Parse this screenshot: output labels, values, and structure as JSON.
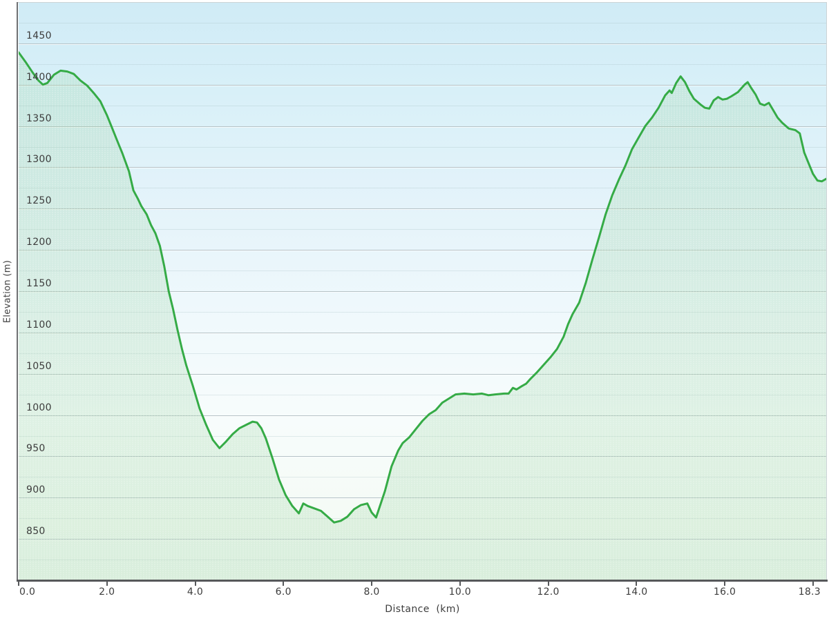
{
  "chart_data": {
    "type": "area",
    "title": "",
    "xlabel": "Distance  (km)",
    "ylabel": "Elevation (m)",
    "xlim": [
      0,
      18.3
    ],
    "ylim": [
      800,
      1500
    ],
    "grid": "on",
    "legend": "none",
    "yticks": [
      850,
      900,
      950,
      1000,
      1050,
      1100,
      1150,
      1200,
      1250,
      1300,
      1350,
      1400,
      1450
    ],
    "xticks": [
      0,
      2,
      4,
      6,
      8,
      10,
      12,
      14,
      16,
      18
    ],
    "xtick_labels": [
      {
        "text": "0.0",
        "km": 0.0,
        "anchor": "start"
      },
      {
        "text": "2.0",
        "km": 2.0,
        "anchor": "middle"
      },
      {
        "text": "4.0",
        "km": 4.0,
        "anchor": "middle"
      },
      {
        "text": "6.0",
        "km": 6.0,
        "anchor": "middle"
      },
      {
        "text": "8.0",
        "km": 8.0,
        "anchor": "middle"
      },
      {
        "text": "10.0",
        "km": 10.0,
        "anchor": "middle"
      },
      {
        "text": "12.0",
        "km": 12.0,
        "anchor": "middle"
      },
      {
        "text": "14.0",
        "km": 14.0,
        "anchor": "middle"
      },
      {
        "text": "16.0",
        "km": 16.0,
        "anchor": "middle"
      },
      {
        "text": "18.3",
        "km": 18.3,
        "anchor": "end"
      }
    ],
    "points": [
      [
        0.0,
        1439
      ],
      [
        0.15,
        1428
      ],
      [
        0.3,
        1416
      ],
      [
        0.45,
        1405
      ],
      [
        0.55,
        1400
      ],
      [
        0.65,
        1402
      ],
      [
        0.8,
        1412
      ],
      [
        0.95,
        1417
      ],
      [
        1.1,
        1416
      ],
      [
        1.25,
        1413
      ],
      [
        1.4,
        1405
      ],
      [
        1.55,
        1399
      ],
      [
        1.7,
        1390
      ],
      [
        1.85,
        1380
      ],
      [
        2.0,
        1363
      ],
      [
        2.1,
        1350
      ],
      [
        2.25,
        1330
      ],
      [
        2.35,
        1317
      ],
      [
        2.5,
        1295
      ],
      [
        2.6,
        1272
      ],
      [
        2.7,
        1262
      ],
      [
        2.78,
        1253
      ],
      [
        2.9,
        1243
      ],
      [
        3.0,
        1230
      ],
      [
        3.1,
        1220
      ],
      [
        3.2,
        1205
      ],
      [
        3.3,
        1180
      ],
      [
        3.4,
        1150
      ],
      [
        3.5,
        1128
      ],
      [
        3.6,
        1103
      ],
      [
        3.7,
        1080
      ],
      [
        3.8,
        1060
      ],
      [
        3.95,
        1035
      ],
      [
        4.1,
        1008
      ],
      [
        4.25,
        988
      ],
      [
        4.4,
        970
      ],
      [
        4.55,
        960
      ],
      [
        4.7,
        968
      ],
      [
        4.85,
        977
      ],
      [
        5.0,
        984
      ],
      [
        5.15,
        988
      ],
      [
        5.3,
        992
      ],
      [
        5.4,
        991
      ],
      [
        5.5,
        984
      ],
      [
        5.6,
        972
      ],
      [
        5.75,
        948
      ],
      [
        5.9,
        922
      ],
      [
        6.05,
        903
      ],
      [
        6.2,
        890
      ],
      [
        6.35,
        881
      ],
      [
        6.45,
        893
      ],
      [
        6.55,
        890
      ],
      [
        6.7,
        887
      ],
      [
        6.85,
        884
      ],
      [
        7.0,
        877
      ],
      [
        7.15,
        870
      ],
      [
        7.3,
        872
      ],
      [
        7.45,
        877
      ],
      [
        7.6,
        886
      ],
      [
        7.75,
        891
      ],
      [
        7.9,
        893
      ],
      [
        8.0,
        882
      ],
      [
        8.1,
        876
      ],
      [
        8.2,
        892
      ],
      [
        8.3,
        908
      ],
      [
        8.45,
        938
      ],
      [
        8.6,
        957
      ],
      [
        8.7,
        966
      ],
      [
        8.85,
        973
      ],
      [
        9.0,
        983
      ],
      [
        9.15,
        993
      ],
      [
        9.3,
        1001
      ],
      [
        9.45,
        1006
      ],
      [
        9.6,
        1015
      ],
      [
        9.75,
        1020
      ],
      [
        9.9,
        1025
      ],
      [
        10.1,
        1026
      ],
      [
        10.3,
        1025
      ],
      [
        10.5,
        1026
      ],
      [
        10.65,
        1024
      ],
      [
        10.8,
        1025
      ],
      [
        11.0,
        1026
      ],
      [
        11.1,
        1026
      ],
      [
        11.2,
        1033
      ],
      [
        11.28,
        1031
      ],
      [
        11.4,
        1035
      ],
      [
        11.5,
        1038
      ],
      [
        11.6,
        1044
      ],
      [
        11.75,
        1052
      ],
      [
        11.9,
        1061
      ],
      [
        12.05,
        1070
      ],
      [
        12.2,
        1080
      ],
      [
        12.35,
        1095
      ],
      [
        12.45,
        1110
      ],
      [
        12.55,
        1122
      ],
      [
        12.7,
        1136
      ],
      [
        12.85,
        1160
      ],
      [
        13.0,
        1188
      ],
      [
        13.15,
        1215
      ],
      [
        13.3,
        1243
      ],
      [
        13.45,
        1266
      ],
      [
        13.6,
        1285
      ],
      [
        13.75,
        1302
      ],
      [
        13.9,
        1322
      ],
      [
        14.05,
        1336
      ],
      [
        14.2,
        1350
      ],
      [
        14.35,
        1360
      ],
      [
        14.5,
        1372
      ],
      [
        14.65,
        1387
      ],
      [
        14.75,
        1393
      ],
      [
        14.8,
        1390
      ],
      [
        14.9,
        1402
      ],
      [
        15.0,
        1410
      ],
      [
        15.1,
        1403
      ],
      [
        15.2,
        1392
      ],
      [
        15.3,
        1383
      ],
      [
        15.45,
        1376
      ],
      [
        15.55,
        1372
      ],
      [
        15.65,
        1371
      ],
      [
        15.75,
        1381
      ],
      [
        15.85,
        1385
      ],
      [
        15.95,
        1382
      ],
      [
        16.05,
        1383
      ],
      [
        16.15,
        1386
      ],
      [
        16.3,
        1391
      ],
      [
        16.45,
        1400
      ],
      [
        16.52,
        1403
      ],
      [
        16.6,
        1396
      ],
      [
        16.7,
        1388
      ],
      [
        16.8,
        1377
      ],
      [
        16.9,
        1375
      ],
      [
        17.0,
        1378
      ],
      [
        17.1,
        1369
      ],
      [
        17.2,
        1360
      ],
      [
        17.3,
        1354
      ],
      [
        17.45,
        1347
      ],
      [
        17.6,
        1345
      ],
      [
        17.7,
        1341
      ],
      [
        17.8,
        1318
      ],
      [
        17.9,
        1305
      ],
      [
        18.0,
        1292
      ],
      [
        18.1,
        1284
      ],
      [
        18.2,
        1283
      ],
      [
        18.3,
        1286
      ]
    ]
  },
  "style": {
    "line_color": "#35ab46",
    "fill_color": "rgba(150,208,160,0.26)",
    "speckle_color": "rgba(255,255,255,0.45)",
    "bg_top": "#d0ebf6",
    "bg_bottom": "#f0f9f2",
    "grid_major_color": "#b5c2c6",
    "grid_minor_color": "rgba(160,185,192,0.28)",
    "axis_color": "#56585a",
    "text_color": "#3c3c3c"
  }
}
